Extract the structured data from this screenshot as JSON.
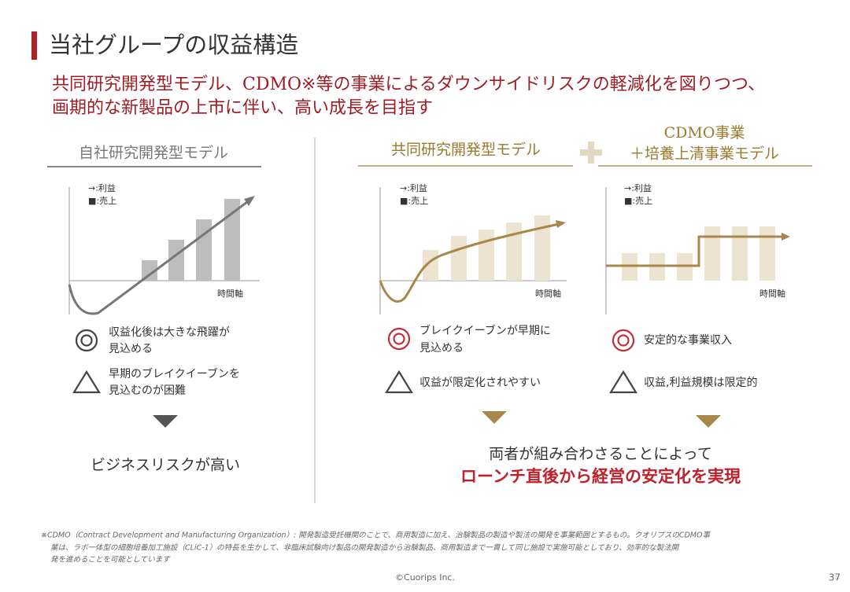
{
  "header": {
    "title": "当社グループの収益構造",
    "subtitle": [
      "共同研究開発型モデル、CDMO※等の事業によるダウンサイドリスクの軽減化を図りつつ、",
      "画期的な新製品の上市に伴い、高い成長を目指す"
    ]
  },
  "panels": [
    {
      "title": [
        "自社研究開発型モデル"
      ],
      "legend": [
        "→:利益",
        "■:売上"
      ],
      "axis_label": "時間軸",
      "pro": [
        "収益化後は大きな飛躍が",
        "見込める"
      ],
      "con": [
        "早期のブレイクイーブンを",
        "見込むのが困難"
      ]
    },
    {
      "title": [
        "共同研究開発型モデル"
      ],
      "legend": [
        "→:利益",
        "■:売上"
      ],
      "axis_label": "時間軸",
      "pro": [
        "ブレイクイーブンが早期に",
        "見込める"
      ],
      "con": [
        "収益が限定化されやすい"
      ]
    },
    {
      "title": [
        "CDMO事業",
        "＋培養上清事業モデル"
      ],
      "legend": [
        "→:利益",
        "■:売上"
      ],
      "axis_label": "時間軸",
      "pro": [
        "安定的な事業収入"
      ],
      "con": [
        "収益,利益規模は限定的"
      ]
    }
  ],
  "conclusions": {
    "left": "ビジネスリスクが高い",
    "right": [
      "両者が組み合わさることによって",
      "ローンチ直後から経営の安定化を実現"
    ]
  },
  "footnote": [
    "※CDMO（Contract Development and Manufacturing Organization）: 開発製造受託機関のことで、商用製造に加え、治験製品の製造や製法の開発を事業範囲とするもの。クオリプスのCDMO事",
    "業は、ラボ一体型の細胞培養加工施設（CLiC-1）の特長を生かして、非臨床試験向け製品の開発製造から治験製品、商用製造まで一貫して同じ施設で実施可能としており、効率的な製法開",
    "発を進めることを可能としています"
  ],
  "footer": {
    "copyright": "©Cuorips Inc.",
    "page": "37"
  }
}
